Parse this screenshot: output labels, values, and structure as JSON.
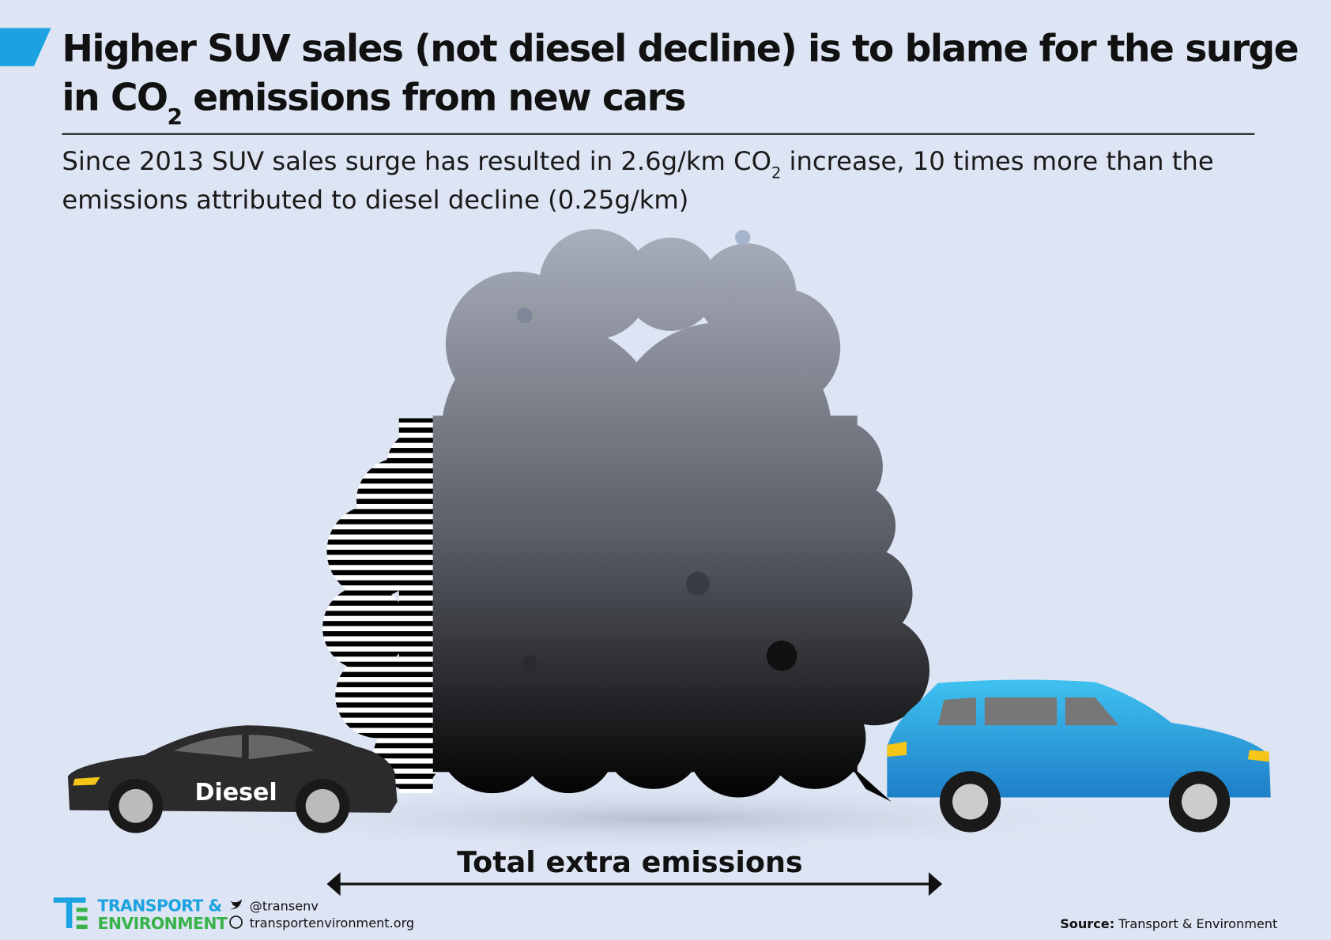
{
  "title": {
    "line1": "Higher SUV sales (not diesel decline) is to blame for the surge",
    "line2_before": "in CO",
    "line2_sub": "2",
    "line2_after": " emissions from new cars"
  },
  "subtitle": {
    "line1_before": "Since 2013 SUV sales surge has resulted in 2.6g/km CO",
    "line1_sub": "2",
    "line1_after": " increase, 10 times more than the",
    "line2": "emissions attributed to diesel decline (0.25g/km)"
  },
  "car_label": "Diesel",
  "arrow_label": "Total extra emissions",
  "footer": {
    "logo_line1": "TRANSPORT &",
    "logo_line2": "ENVIRONMENT",
    "twitter": "@transenv",
    "website": "transportenvironment.org",
    "source_label": "Source:",
    "source": " Transport & Environment"
  }
}
